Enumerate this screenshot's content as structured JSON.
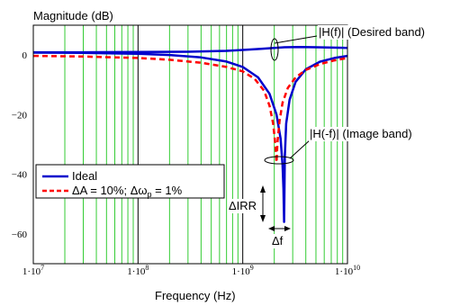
{
  "chart_data": {
    "type": "line",
    "ylabel": "Magnitude (dB)",
    "xlabel": "Frequency (Hz)",
    "x_scale": "log",
    "xlim": [
      10000000,
      10000000000
    ],
    "ylim": [
      -70,
      10
    ],
    "x_ticks": [
      {
        "value": 10000000,
        "label": "1·10",
        "exp": "7"
      },
      {
        "value": 100000000,
        "label": "1·10",
        "exp": "8"
      },
      {
        "value": 1000000000,
        "label": "1·10",
        "exp": "9"
      },
      {
        "value": 10000000000,
        "label": "1·10",
        "exp": "10"
      }
    ],
    "y_ticks": [
      {
        "value": 0,
        "label": "0"
      },
      {
        "value": -20,
        "label": "−20"
      },
      {
        "value": -40,
        "label": "−40"
      },
      {
        "value": -60,
        "label": "−60"
      }
    ],
    "grid": true,
    "legend_position": "lower-left",
    "legend": [
      {
        "label": "Ideal",
        "style": "solid",
        "color": "#0000cc"
      },
      {
        "label": "ΔA = 10%; Δω",
        "sub": "p",
        "label_tail": " = 1%",
        "style": "dashed",
        "color": "#ff0000"
      }
    ],
    "series": [
      {
        "name": "Ideal",
        "color": "#0000cc",
        "style": "solid",
        "lines": [
          {
            "x": [
              10000000,
              30000000,
              100000000,
              300000000,
              700000000,
              1000000000,
              1500000000,
              2000000000,
              2500000000,
              3500000000,
              5000000000,
              10000000000
            ],
            "y": [
              0.9,
              0.9,
              1.0,
              1.1,
              1.4,
              1.7,
              2.1,
              2.4,
              2.6,
              2.7,
              2.6,
              2.4
            ]
          },
          {
            "x": [
              10000000,
              30000000,
              100000000,
              200000000,
              400000000,
              700000000,
              1000000000,
              1400000000,
              1800000000,
              2100000000,
              2300000000,
              2400000000,
              2450000000,
              2480000000,
              2520000000,
              2600000000,
              2800000000,
              3200000000,
              4000000000,
              5500000000,
              7500000000,
              10000000000
            ],
            "y": [
              0.8,
              0.7,
              0.4,
              0.0,
              -0.8,
              -2.2,
              -4.0,
              -7.5,
              -13.0,
              -20.0,
              -28.0,
              -37.0,
              -45.0,
              -56.0,
              -34.0,
              -23.0,
              -15.0,
              -9.0,
              -4.8,
              -2.2,
              -1.0,
              -0.3
            ]
          }
        ]
      },
      {
        "name": "ΔA = 10%; Δωp = 1%",
        "color": "#ff0000",
        "style": "dashed",
        "lines": [
          {
            "x": [
              10000000,
              30000000,
              100000000,
              200000000,
              400000000,
              700000000,
              1000000000,
              1300000000,
              1600000000,
              1800000000,
              1950000000,
              2050000000,
              2100000000,
              2150000000,
              2250000000,
              2400000000,
              2700000000,
              3200000000,
              4000000000,
              5500000000,
              7500000000,
              10000000000
            ],
            "y": [
              -0.3,
              -0.5,
              -1.0,
              -1.6,
              -2.6,
              -4.0,
              -5.5,
              -8.0,
              -12.0,
              -17.0,
              -23.0,
              -30.0,
              -36.0,
              -29.0,
              -22.0,
              -16.0,
              -11.0,
              -7.5,
              -5.0,
              -3.0,
              -1.8,
              -1.0
            ]
          }
        ]
      }
    ],
    "annotations": [
      {
        "text": "|H(f)| (Desired band)"
      },
      {
        "text": "|H(-f)| (Image band)"
      },
      {
        "text": "ΔIRR"
      },
      {
        "text": "Δf"
      }
    ]
  }
}
